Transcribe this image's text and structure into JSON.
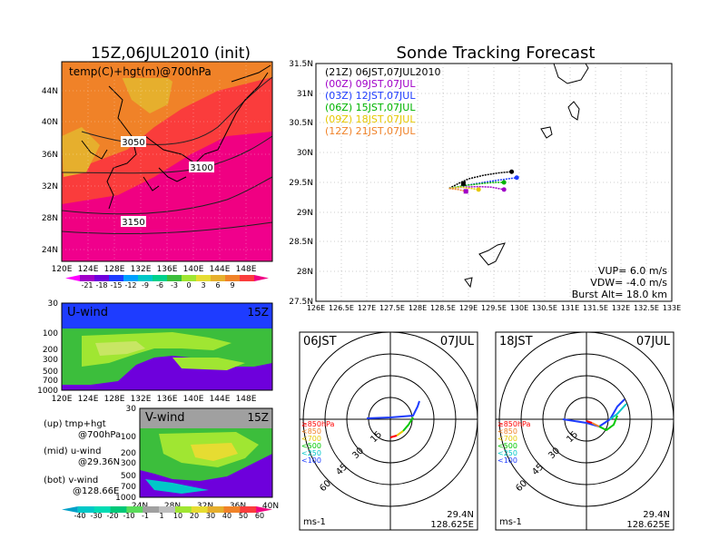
{
  "left": {
    "title": "15Z,06JUL2010 (init)",
    "map_label": "temp(C)+hgt(m)@700hPa",
    "lat_ticks": [
      "44N",
      "40N",
      "36N",
      "32N",
      "28N",
      "24N"
    ],
    "lon_ticks": [
      "120E",
      "124E",
      "128E",
      "132E",
      "136E",
      "140E",
      "144E",
      "148E"
    ],
    "contours": [
      "3050",
      "3100",
      "3150"
    ],
    "temp_colorbar": [
      "-21",
      "-18",
      "-15",
      "-12",
      "-9",
      "-6",
      "-3",
      "0",
      "3",
      "6",
      "9"
    ],
    "temp_colors": [
      "#ff00ff",
      "#a000c8",
      "#6e00dc",
      "#1e3cff",
      "#00a0ff",
      "#00c8c8",
      "#00d28c",
      "#3cbe3c",
      "#a0e632",
      "#e6dc32",
      "#e6af2d",
      "#f08228",
      "#fa3c3c",
      "#f00082"
    ],
    "uwind_label": "U-wind",
    "uwind_time": "15Z",
    "vwind_label": "V-wind",
    "vwind_time": "15Z",
    "p_ticks": [
      "30",
      "100",
      "200",
      "300",
      "500",
      "700",
      "1000"
    ],
    "vwind_lat_ticks": [
      "24N",
      "28N",
      "32N",
      "36N",
      "40N"
    ],
    "notes": [
      "(up) tmp+hgt",
      "@700hPa",
      "(mid) u-wind",
      "@29.36N",
      "(bot) v-wind",
      "@128.66E"
    ],
    "wind_colorbar": [
      "-40",
      "-30",
      "-20",
      "-10",
      "-1",
      "1",
      "10",
      "20",
      "30",
      "40",
      "50",
      "60"
    ],
    "wind_colors": [
      "#00a0c8",
      "#00c8c8",
      "#00dcb4",
      "#00c878",
      "#5adc5a",
      "#a0a0a0",
      "#bebebe",
      "#a0e632",
      "#e6dc32",
      "#e6af2d",
      "#f08228",
      "#fa3c3c",
      "#f00082"
    ]
  },
  "right": {
    "title": "Sonde Tracking Forecast",
    "legend": [
      {
        "text": "(21Z) 06JST,07JUL2010",
        "color": "#000000"
      },
      {
        "text": "(00Z) 09JST,07JUL",
        "color": "#a000c8"
      },
      {
        "text": "(03Z) 12JST,07JUL",
        "color": "#1e3cff"
      },
      {
        "text": "(06Z) 15JST,07JUL",
        "color": "#00b400"
      },
      {
        "text": "(09Z) 18JST,07JUL",
        "color": "#e6c800"
      },
      {
        "text": "(12Z) 21JST,07JUL",
        "color": "#f08228"
      }
    ],
    "lat_ticks": [
      "31.5N",
      "31N",
      "30.5N",
      "30N",
      "29.5N",
      "29N",
      "28.5N",
      "28N",
      "27.5N"
    ],
    "lon_ticks": [
      "126E",
      "126.5E",
      "127E",
      "127.5E",
      "128E",
      "128.5E",
      "129E",
      "129.5E",
      "130E",
      "130.5E",
      "131E",
      "131.5E",
      "132E",
      "132.5E",
      "133E"
    ],
    "params": [
      "VUP=  6.0  m/s",
      "VDW= -4.0  m/s",
      "Burst Alt= 18.0  km"
    ]
  },
  "hodo1": {
    "time": "06JST",
    "date": "07JUL",
    "pressure_legend": [
      "≥850hPa",
      "<850",
      "<700",
      "<500",
      "<250",
      "<100"
    ],
    "pressure_colors": [
      "#ff0000",
      "#f08228",
      "#e6c800",
      "#00c800",
      "#00c8c8",
      "#1e3cff"
    ],
    "ring_labels": [
      "15",
      "30",
      "45",
      "60"
    ],
    "unit": "ms-1",
    "lat": "29.4N",
    "lon": "128.625E"
  },
  "hodo2": {
    "time": "18JST",
    "date": "07JUL",
    "pressure_legend": [
      "≥850hPa",
      "<850",
      "<700",
      "<500",
      "<250",
      "<100"
    ],
    "pressure_colors": [
      "#ff0000",
      "#f08228",
      "#e6c800",
      "#00c800",
      "#00c8c8",
      "#1e3cff"
    ],
    "ring_labels": [
      "15",
      "30",
      "45",
      "60"
    ],
    "unit": "ms-1",
    "lat": "29.4N",
    "lon": "128.625E"
  },
  "chart_data": [
    {
      "type": "line",
      "title": "Sonde Tracking Forecast",
      "xlim": [
        126,
        133
      ],
      "ylim": [
        27.5,
        31.5
      ],
      "series": [
        {
          "name": "(21Z) 06JST,07JUL2010",
          "x": [
            128.62,
            128.8,
            129.0,
            129.3,
            129.6,
            129.85
          ],
          "y": [
            29.4,
            29.48,
            29.56,
            29.62,
            29.66,
            29.68
          ]
        },
        {
          "name": "(00Z) 09JST,07JUL",
          "x": [
            128.62,
            128.9,
            129.2,
            129.45,
            129.7
          ],
          "y": [
            29.4,
            29.42,
            29.43,
            29.42,
            29.38
          ]
        },
        {
          "name": "(03Z) 12JST,07JUL",
          "x": [
            128.62,
            128.95,
            129.3,
            129.6,
            129.95
          ],
          "y": [
            29.4,
            29.45,
            29.5,
            29.54,
            29.58
          ]
        },
        {
          "name": "(06Z) 15JST,07JUL",
          "x": [
            128.62,
            128.95,
            129.25,
            129.5,
            129.7
          ],
          "y": [
            29.4,
            29.45,
            29.48,
            29.5,
            29.5
          ]
        },
        {
          "name": "(09Z) 18JST,07JUL",
          "x": [
            128.62,
            128.85,
            129.05,
            129.2
          ],
          "y": [
            29.4,
            29.42,
            29.4,
            29.38
          ]
        },
        {
          "name": "(12Z) 21JST,07JUL",
          "x": [
            128.62,
            128.8,
            128.95
          ],
          "y": [
            29.4,
            29.38,
            29.35
          ]
        }
      ]
    }
  ]
}
